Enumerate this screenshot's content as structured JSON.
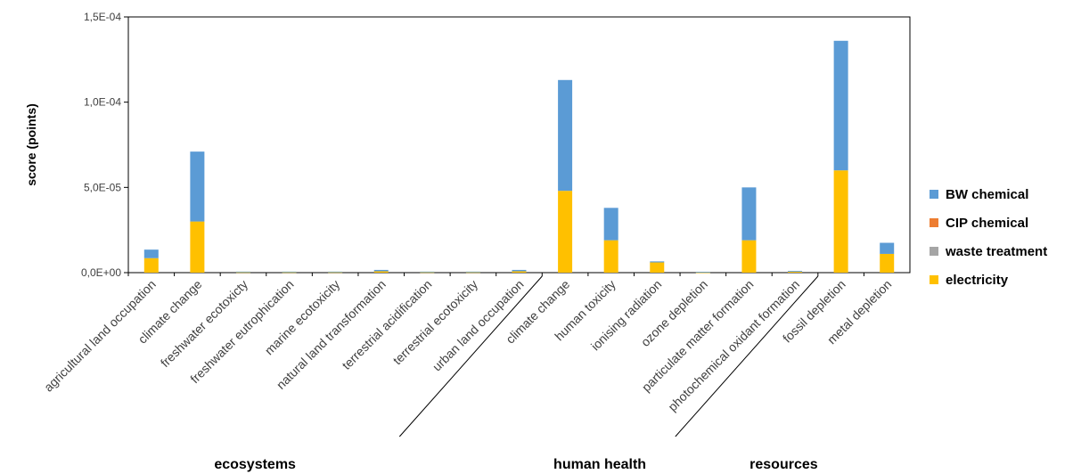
{
  "chart_data": {
    "type": "bar",
    "stacked": true,
    "title": "",
    "xlabel": "",
    "ylabel": "score (points)",
    "ylim": [
      0,
      0.00015
    ],
    "yticks": [
      {
        "value": 0,
        "label": "0,0E+00"
      },
      {
        "value": 5e-05,
        "label": "5,0E-05"
      },
      {
        "value": 0.0001,
        "label": "1,0E-04"
      },
      {
        "value": 0.00015,
        "label": "1,5E-04"
      }
    ],
    "categories": [
      "agricultural land occupation",
      "climate change",
      "freshwater ecotoxicty",
      "freshwater eutrophication",
      "marine ecotoxicity",
      "natural land transformation",
      "terrestrial acidification",
      "terrestrial ecotoxicity",
      "urban land occupation",
      "climate change",
      "human toxicity",
      "ionising radiation",
      "ozone depletion",
      "particulate matter formation",
      "photochemical oxidant formation",
      "fossil depletion",
      "metal depletion"
    ],
    "groups": [
      {
        "name": "ecosystems",
        "start": 0,
        "end": 8
      },
      {
        "name": "human health",
        "start": 9,
        "end": 14
      },
      {
        "name": "resources",
        "start": 15,
        "end": 16
      }
    ],
    "series": [
      {
        "name": "electricity",
        "color": "#FFC000",
        "values": [
          8.5e-06,
          3e-05,
          3e-07,
          3e-07,
          3e-07,
          8e-07,
          3e-07,
          3e-07,
          8e-07,
          4.8e-05,
          1.9e-05,
          6e-06,
          2e-07,
          1.9e-05,
          5e-07,
          6e-05,
          1.1e-05
        ]
      },
      {
        "name": "waste treatment",
        "color": "#A5A5A5",
        "values": [
          0,
          0,
          0,
          0,
          0,
          0,
          0,
          0,
          0,
          0,
          0,
          0,
          0,
          0,
          0,
          0,
          0
        ]
      },
      {
        "name": "CIP chemical",
        "color": "#ED7D31",
        "values": [
          0,
          0,
          0,
          0,
          0,
          0,
          0,
          0,
          0,
          0,
          0,
          0,
          0,
          0,
          0,
          0,
          0
        ]
      },
      {
        "name": "BW chemical",
        "color": "#5B9BD5",
        "values": [
          5e-06,
          4.1e-05,
          3e-07,
          3e-07,
          3e-07,
          8e-07,
          3e-07,
          3e-07,
          8e-07,
          6.5e-05,
          1.9e-05,
          6e-07,
          3e-07,
          3.1e-05,
          5e-07,
          7.6e-05,
          6.5e-06
        ]
      }
    ],
    "legend": {
      "position": "right",
      "order": [
        "BW chemical",
        "CIP chemical",
        "waste treatment",
        "electricity"
      ]
    },
    "grid": false
  }
}
